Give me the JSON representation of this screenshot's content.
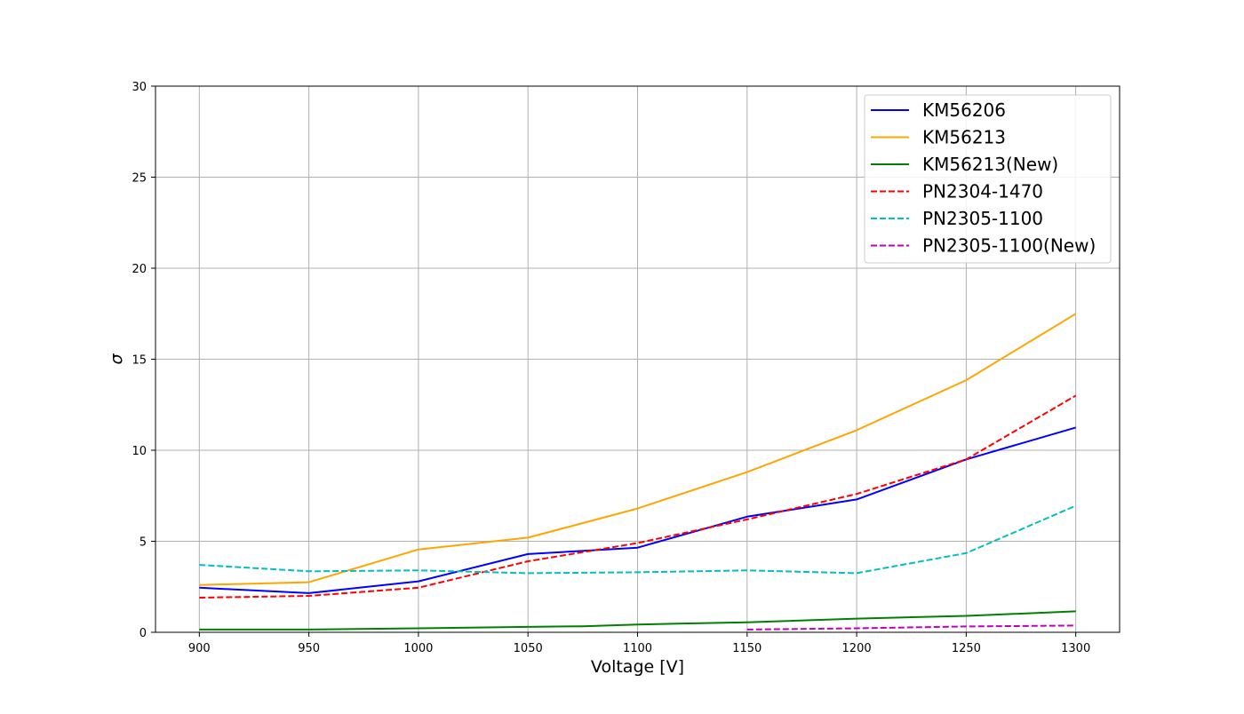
{
  "chart_data": {
    "type": "line",
    "title": "",
    "xlabel": "Voltage [V]",
    "ylabel": "σ",
    "x": [
      900,
      950,
      1000,
      1050,
      1100,
      1150,
      1200,
      1250,
      1300
    ],
    "xlim": [
      880,
      1320
    ],
    "ylim": [
      0,
      30
    ],
    "xticks": [
      900,
      950,
      1000,
      1050,
      1100,
      1150,
      1200,
      1250,
      1300
    ],
    "yticks": [
      0,
      5,
      10,
      15,
      20,
      25,
      30
    ],
    "grid": true,
    "legend_position": "top-right",
    "series": [
      {
        "name": "KM56206",
        "color": "#0000ff",
        "dash": "solid",
        "x": [
          900,
          950,
          1000,
          1050,
          1100,
          1150,
          1200,
          1250,
          1300
        ],
        "values": [
          2.45,
          2.15,
          2.8,
          4.3,
          4.65,
          6.35,
          7.3,
          9.5,
          11.25
        ]
      },
      {
        "name": "KM56213",
        "color": "#ffa500",
        "dash": "solid",
        "x": [
          900,
          950,
          1000,
          1050,
          1100,
          1150,
          1200,
          1250,
          1300
        ],
        "values": [
          2.6,
          2.75,
          4.55,
          5.2,
          6.8,
          8.8,
          11.1,
          13.85,
          17.5
        ]
      },
      {
        "name": "KM56213(New)",
        "color": "#008000",
        "dash": "solid",
        "x": [
          900,
          950,
          1000,
          1050,
          1075,
          1100,
          1150,
          1200,
          1250,
          1300
        ],
        "values": [
          0.15,
          0.15,
          0.22,
          0.3,
          0.33,
          0.43,
          0.55,
          0.75,
          0.9,
          1.15
        ]
      },
      {
        "name": "PN2304-1470",
        "color": "#ff0000",
        "dash": "dashed",
        "x": [
          900,
          950,
          1000,
          1050,
          1100,
          1150,
          1200,
          1250,
          1300
        ],
        "values": [
          1.9,
          2.0,
          2.45,
          3.9,
          4.9,
          6.2,
          7.6,
          9.5,
          13.0
        ]
      },
      {
        "name": "PN2305-1100",
        "color": "#00bfbf",
        "dash": "dashed",
        "x": [
          900,
          950,
          1000,
          1050,
          1100,
          1150,
          1200,
          1250,
          1300
        ],
        "values": [
          3.7,
          3.35,
          3.4,
          3.25,
          3.3,
          3.4,
          3.25,
          4.35,
          6.95
        ]
      },
      {
        "name": "PN2305-1100(New)",
        "color": "#bf00bf",
        "dash": "dashed",
        "x": [
          1150,
          1200,
          1250,
          1300
        ],
        "values": [
          0.15,
          0.22,
          0.32,
          0.37
        ]
      }
    ]
  }
}
